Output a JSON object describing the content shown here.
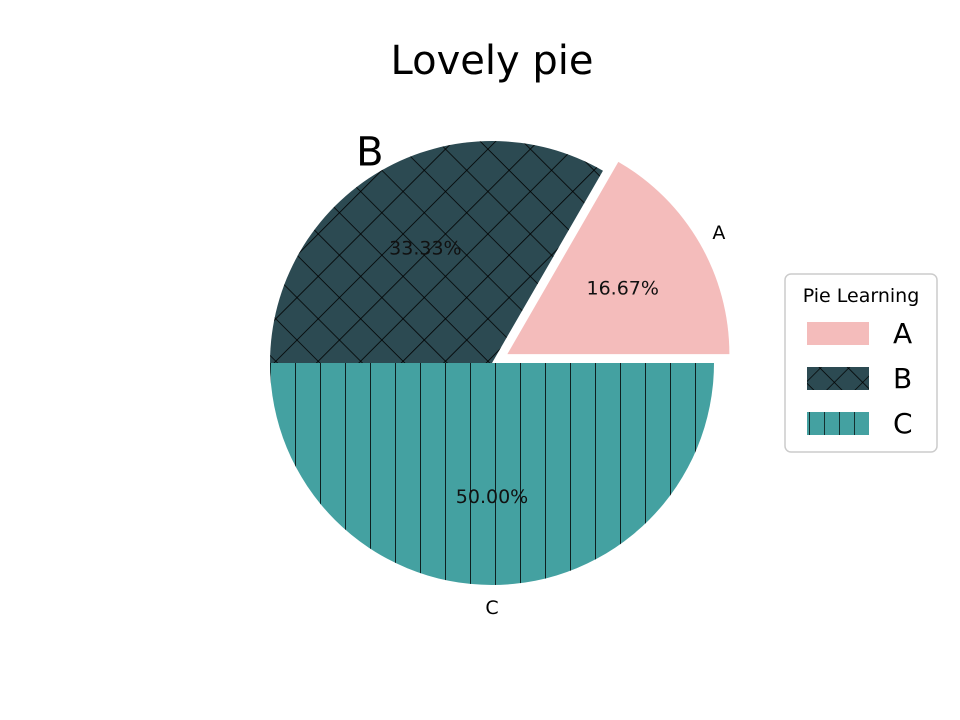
{
  "chart_data": {
    "type": "pie",
    "title": "Lovely pie",
    "categories": [
      "A",
      "B",
      "C"
    ],
    "values": [
      16.67,
      33.33,
      50.0
    ],
    "percent_labels": [
      "16.67%",
      "33.33%",
      "50.00%"
    ],
    "colors": [
      "#f4bcbb",
      "#2c4a52",
      "#44a1a1"
    ],
    "hatches": [
      "none",
      "crosshatch",
      "vertical-lines"
    ],
    "explode": [
      0.08,
      0,
      0
    ],
    "start_angle_deg": 0,
    "direction": "counterclockwise",
    "emphasized_label": "B",
    "legend": {
      "title": "Pie Learning",
      "entries": [
        "A",
        "B",
        "C"
      ],
      "placement": "center-right"
    }
  }
}
